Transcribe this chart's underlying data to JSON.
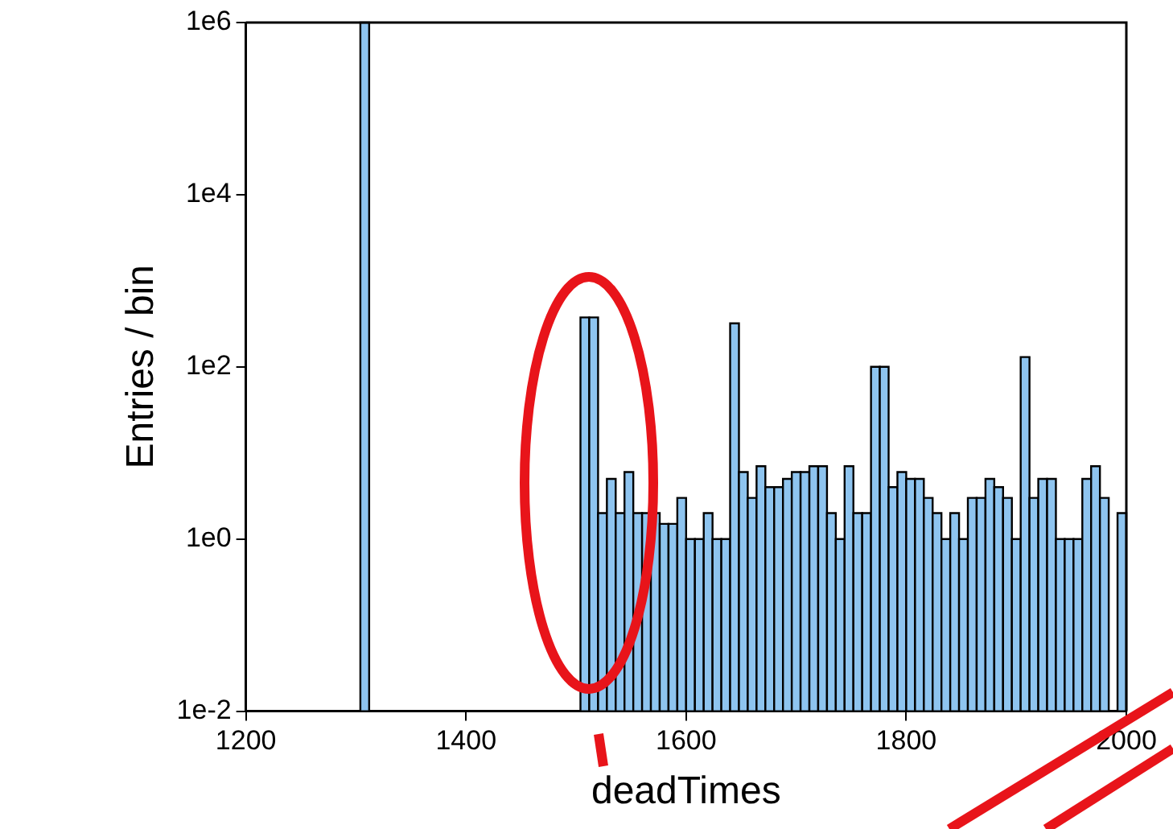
{
  "chart_data": {
    "type": "histogram",
    "xlabel": "deadTimes",
    "ylabel": "Entries / bin",
    "log": "y",
    "color": "#8ec4ef",
    "bins": [
      1304,
      1312,
      1504,
      1512,
      1520,
      1528,
      1536,
      1544,
      1552,
      1560,
      1568,
      1576,
      1584,
      1592,
      1600,
      1608,
      1616,
      1624,
      1632,
      1640,
      1648,
      1656,
      1664,
      1672,
      1680,
      1688,
      1696,
      1704,
      1712,
      1720,
      1728,
      1736,
      1744,
      1752,
      1760,
      1768,
      1776,
      1784,
      1792,
      1800,
      1808,
      1816,
      1824,
      1832,
      1840,
      1848,
      1856,
      1864,
      1872,
      1880,
      1888,
      1896,
      1904,
      1912,
      1920,
      1928,
      1936,
      1944,
      1952,
      1960,
      1968,
      1976,
      1984,
      1992,
      2000
    ],
    "values": [
      1000000,
      null,
      375,
      375,
      2,
      5,
      2,
      6,
      2,
      2,
      2,
      1.5,
      1.5,
      3,
      1,
      1,
      2,
      1,
      1,
      320,
      6,
      3,
      7,
      4,
      4,
      5,
      6,
      6,
      7,
      7,
      2,
      1,
      7,
      2,
      2,
      100,
      100,
      4,
      6,
      5,
      5,
      3,
      2,
      1,
      2,
      1,
      3,
      3,
      5,
      4,
      3,
      1,
      130,
      3,
      5,
      5,
      1,
      1,
      1,
      5,
      7,
      3,
      null,
      2
    ],
    "xlim": [
      1200,
      2000
    ],
    "xticks": [
      1200,
      1400,
      1600,
      1800,
      2000
    ],
    "ylim": [
      0.01,
      1000000
    ],
    "yticks": [
      {
        "value": 0.01,
        "label": "1e-2"
      },
      {
        "value": 1,
        "label": "1e0"
      },
      {
        "value": 100,
        "label": "1e2"
      },
      {
        "value": 10000,
        "label": "1e4"
      },
      {
        "value": 1000000,
        "label": "1e6"
      }
    ],
    "grid": false,
    "legend": false
  }
}
